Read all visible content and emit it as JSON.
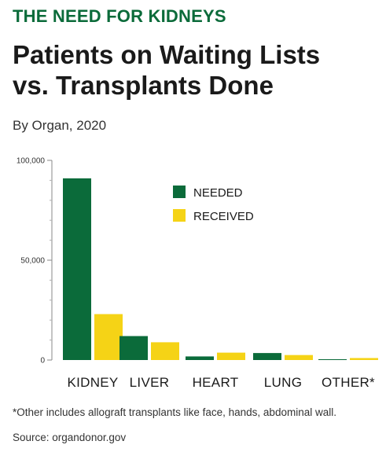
{
  "kicker": "THE NEED FOR KIDNEYS",
  "title_line1": "Patients on Waiting Lists",
  "title_line2": "vs. Transplants Done",
  "subtitle": "By Organ, 2020",
  "footnote": "*Other includes allograft transplants like face, hands, abdominal wall.",
  "source": "Source: organdonor.gov",
  "colors": {
    "needed": "#0b6b3a",
    "received": "#f5d316",
    "axis": "#888888"
  },
  "chart_data": {
    "type": "bar",
    "categories": [
      "KIDNEY",
      "LIVER",
      "HEART",
      "LUNG",
      "OTHER*"
    ],
    "series": [
      {
        "name": "NEEDED",
        "values": [
          91000,
          12000,
          1800,
          3500,
          400
        ]
      },
      {
        "name": "RECEIVED",
        "values": [
          23000,
          8900,
          3700,
          2500,
          1000
        ]
      }
    ],
    "yticks": [
      0,
      50000,
      100000
    ],
    "ytick_labels": [
      "0",
      "50,000",
      "100,000"
    ],
    "ylim": [
      0,
      100000
    ],
    "legend": "top-center",
    "grid": false
  }
}
